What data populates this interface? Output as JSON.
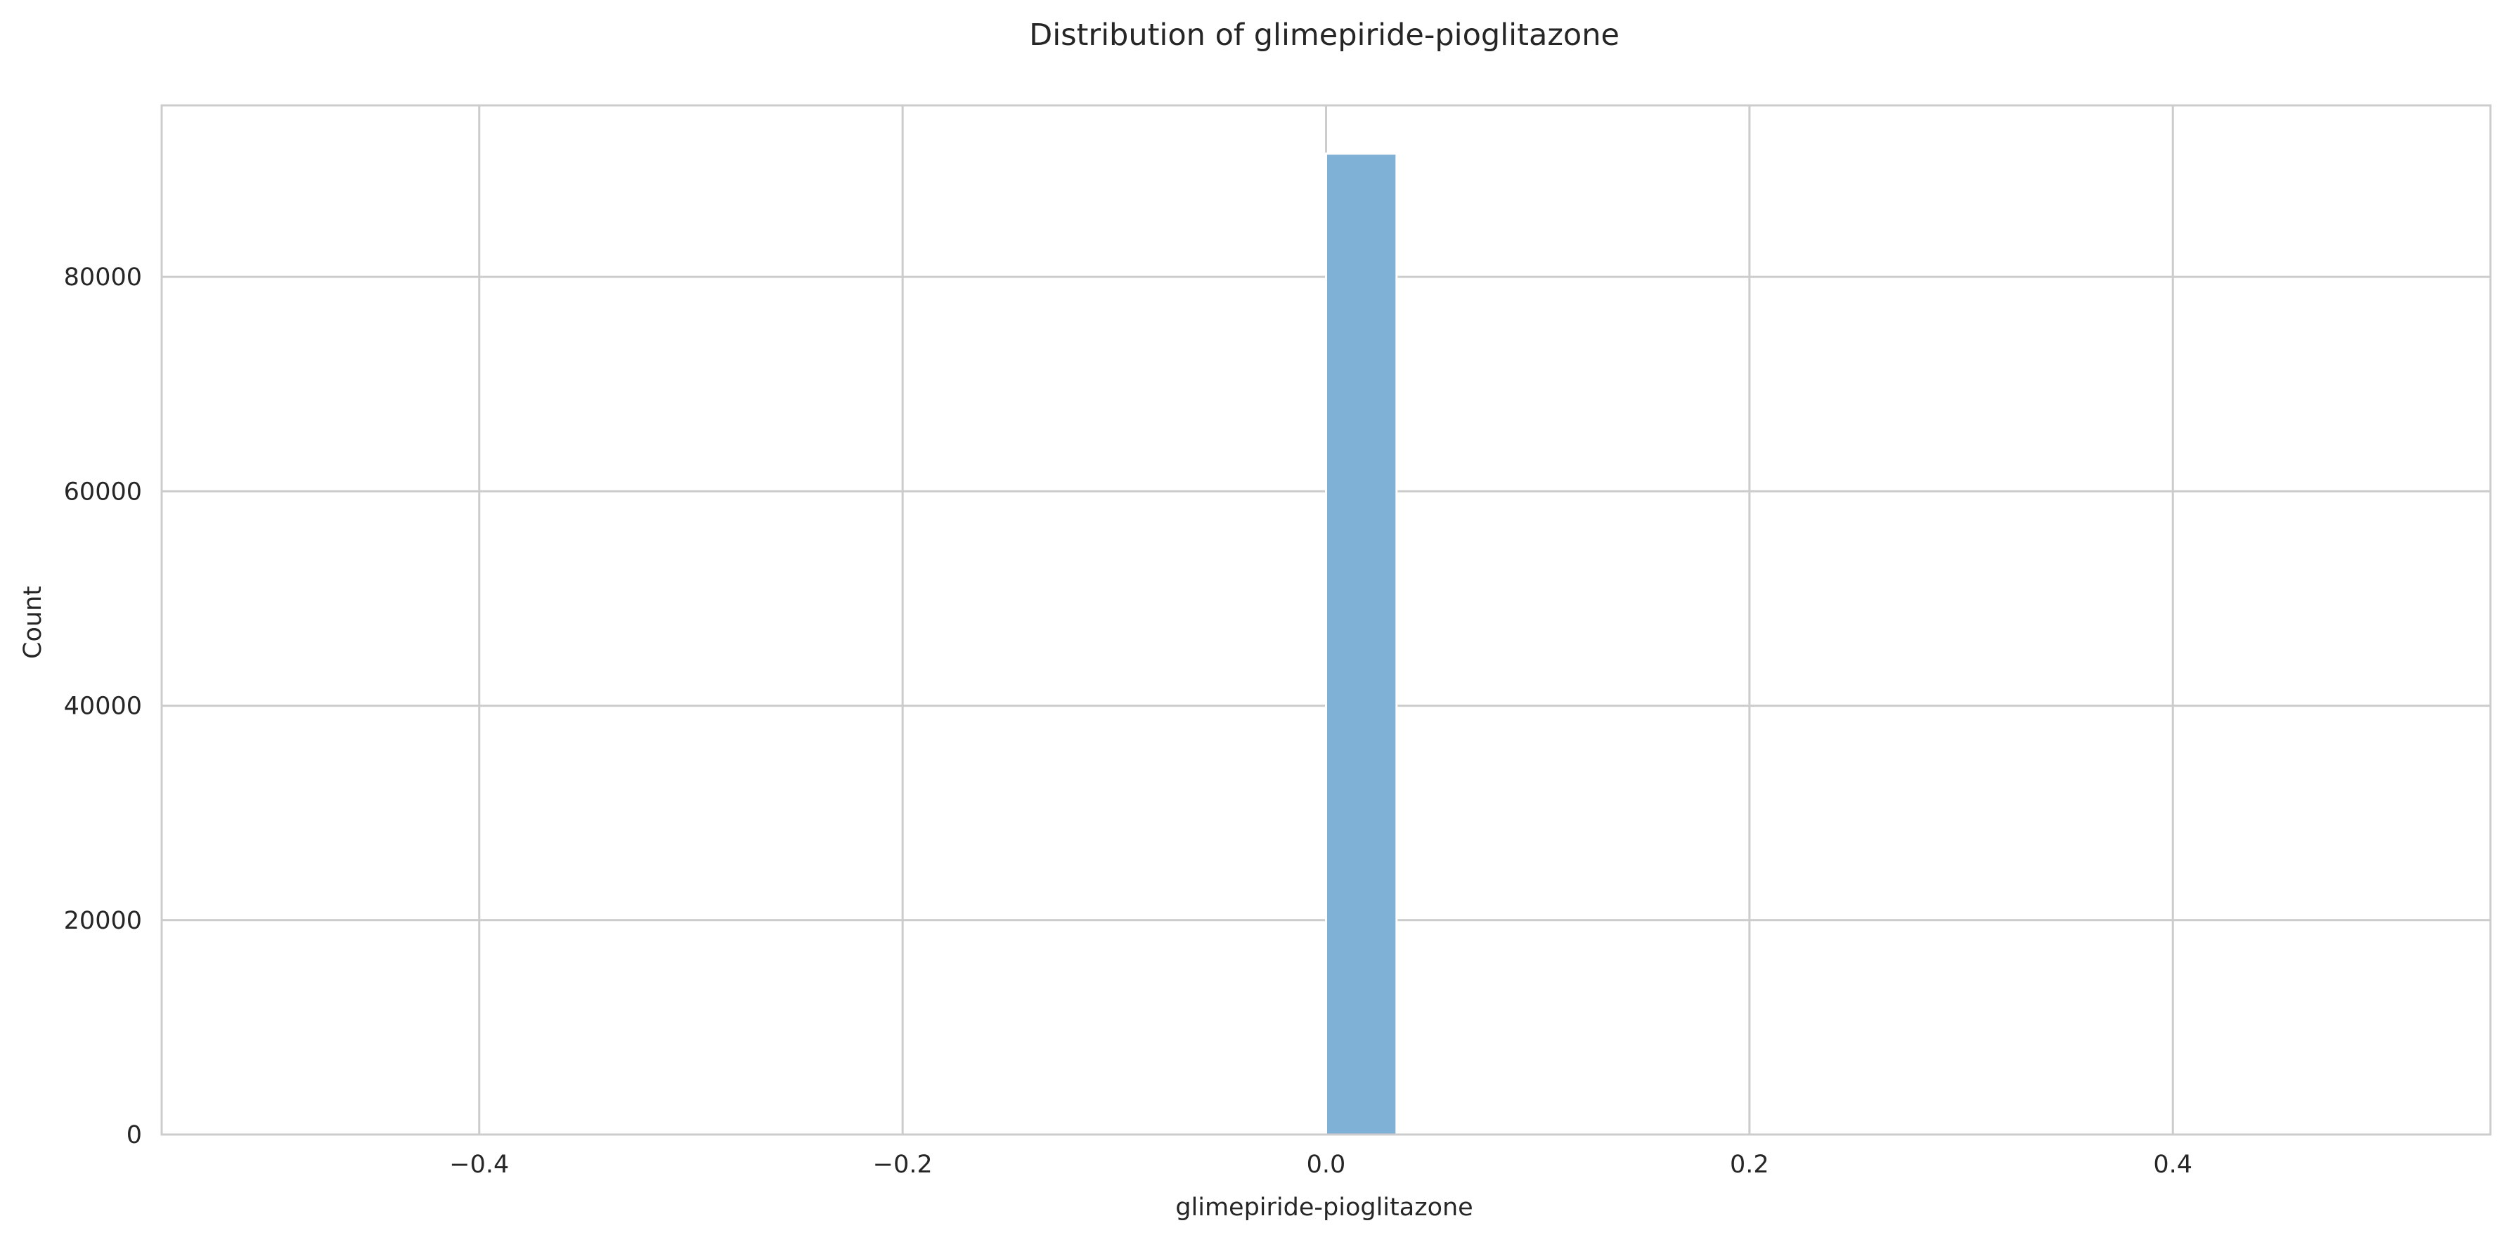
{
  "chart_data": {
    "type": "bar",
    "title": "Distribution of glimepiride-pioglitazone",
    "xlabel": "glimepiride-pioglitazone",
    "ylabel": "Count",
    "xlim": [
      -0.55,
      0.55
    ],
    "ylim": [
      0,
      96000
    ],
    "x_ticks": [
      -0.4,
      -0.2,
      0.0,
      0.2,
      0.4
    ],
    "x_tick_labels": [
      "−0.4",
      "−0.2",
      "0.0",
      "0.2",
      "0.4"
    ],
    "y_ticks": [
      0,
      20000,
      40000,
      60000,
      80000
    ],
    "y_tick_labels": [
      "0",
      "20000",
      "40000",
      "60000",
      "80000"
    ],
    "bins": [
      {
        "x0": 0.0,
        "x1": 0.0333,
        "count": 91500
      }
    ],
    "bar_color": "#7fb1d6",
    "bar_edge_color": "#ffffff",
    "grid": true,
    "legend": "none"
  }
}
